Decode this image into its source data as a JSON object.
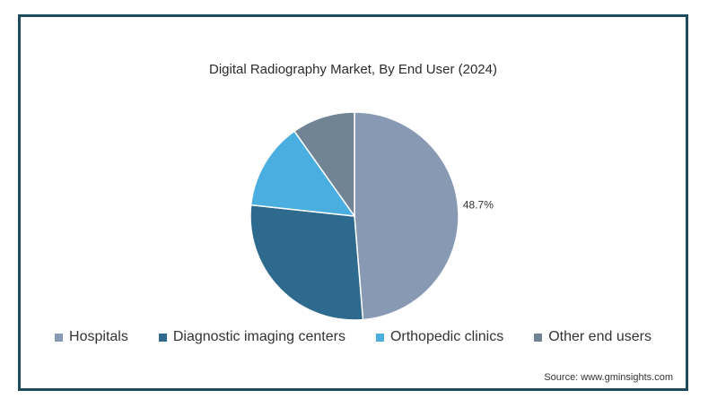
{
  "chart_data": {
    "type": "pie",
    "title": "Digital Radiography Market, By End User (2024)",
    "categories": [
      "Hospitals",
      "Diagnostic imaging centers",
      "Orthopedic clinics",
      "Other end users"
    ],
    "values": [
      48.7,
      28.0,
      13.5,
      9.8
    ],
    "colors": [
      "#8799b3",
      "#2e6a8e",
      "#4aafe0",
      "#718496"
    ],
    "data_labels": [
      "48.7%",
      "",
      "",
      ""
    ],
    "legend_position": "bottom"
  },
  "source": "Source: www.gminsights.com"
}
